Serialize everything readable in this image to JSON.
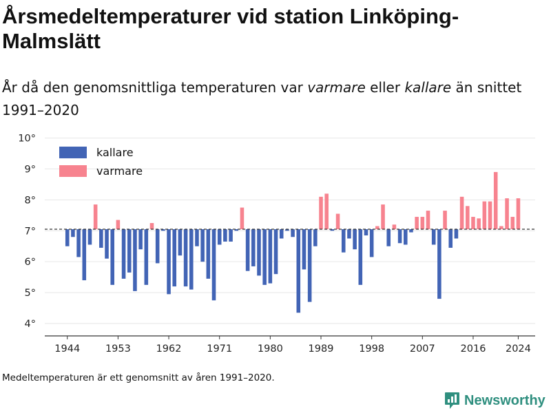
{
  "title": "Årsmedeltemperaturer vid station Linköping-Malmslätt",
  "subtitle": {
    "part1": "År då den genomsnittliga temperaturen var ",
    "warm_word": "varmare",
    "part2": " eller ",
    "cold_word": "kallare",
    "part3": " än snittet 1991–2020"
  },
  "footnote": "Medeltemperaturen är ett genomsnitt av åren 1991–2020.",
  "brand": {
    "name": "Newsworthy",
    "icon": "bar-chart-icon",
    "color": "#2f8f7f"
  },
  "chart_data": {
    "type": "bar",
    "baseline": 7.05,
    "baseline_style": "dashed",
    "ylim": [
      3.6,
      10.1
    ],
    "yticks": [
      4,
      5,
      6,
      7,
      8,
      9,
      10
    ],
    "ytick_labels": [
      "4°",
      "5°",
      "6°",
      "7°",
      "8°",
      "9°",
      "10°"
    ],
    "xlim": [
      1940,
      2027
    ],
    "xticks": [
      1944,
      1953,
      1962,
      1971,
      1980,
      1989,
      1998,
      2007,
      2016,
      2024
    ],
    "xtick_labels": [
      "1944",
      "1953",
      "1962",
      "1971",
      "1980",
      "1989",
      "1998",
      "2007",
      "2016",
      "2024"
    ],
    "grid": "horizontal",
    "legend": {
      "position": "top-left",
      "entries": [
        {
          "label": "kallare",
          "color": "#4264b5"
        },
        {
          "label": "varmare",
          "color": "#f7838f"
        }
      ]
    },
    "colors": {
      "colder": "#4264b5",
      "warmer": "#f7838f",
      "grid": "#e6e6e6",
      "baseline": "#333333"
    },
    "years": [
      1944,
      1945,
      1946,
      1947,
      1948,
      1949,
      1950,
      1951,
      1952,
      1953,
      1954,
      1955,
      1956,
      1957,
      1958,
      1959,
      1960,
      1961,
      1962,
      1963,
      1964,
      1965,
      1966,
      1967,
      1968,
      1969,
      1970,
      1971,
      1972,
      1973,
      1974,
      1975,
      1976,
      1977,
      1978,
      1979,
      1980,
      1981,
      1982,
      1983,
      1984,
      1985,
      1986,
      1987,
      1988,
      1989,
      1990,
      1991,
      1992,
      1993,
      1994,
      1995,
      1996,
      1997,
      1998,
      1999,
      2000,
      2001,
      2002,
      2003,
      2004,
      2005,
      2006,
      2007,
      2008,
      2009,
      2010,
      2011,
      2012,
      2013,
      2014,
      2015,
      2016,
      2017,
      2018,
      2019,
      2020,
      2021,
      2022,
      2023,
      2024
    ],
    "values": [
      6.5,
      6.8,
      6.15,
      5.4,
      6.55,
      7.85,
      6.45,
      6.1,
      5.25,
      7.35,
      5.45,
      5.65,
      5.05,
      6.4,
      5.25,
      7.25,
      5.95,
      7.0,
      4.95,
      5.2,
      6.2,
      5.2,
      5.1,
      6.5,
      6.0,
      5.45,
      4.75,
      6.55,
      6.65,
      6.65,
      7.0,
      7.75,
      5.7,
      5.85,
      5.55,
      5.25,
      5.3,
      5.6,
      6.75,
      7.0,
      6.8,
      4.35,
      5.75,
      4.7,
      6.5,
      8.1,
      8.2,
      7.0,
      7.55,
      6.3,
      6.75,
      6.4,
      5.25,
      6.85,
      6.15,
      7.15,
      7.85,
      6.5,
      7.2,
      6.6,
      6.55,
      6.95,
      7.45,
      7.45,
      7.65,
      6.55,
      4.8,
      7.65,
      6.45,
      6.75,
      8.1,
      7.8,
      7.45,
      7.4,
      7.95,
      7.95,
      8.9,
      7.15,
      8.05,
      7.45,
      8.05
    ]
  }
}
